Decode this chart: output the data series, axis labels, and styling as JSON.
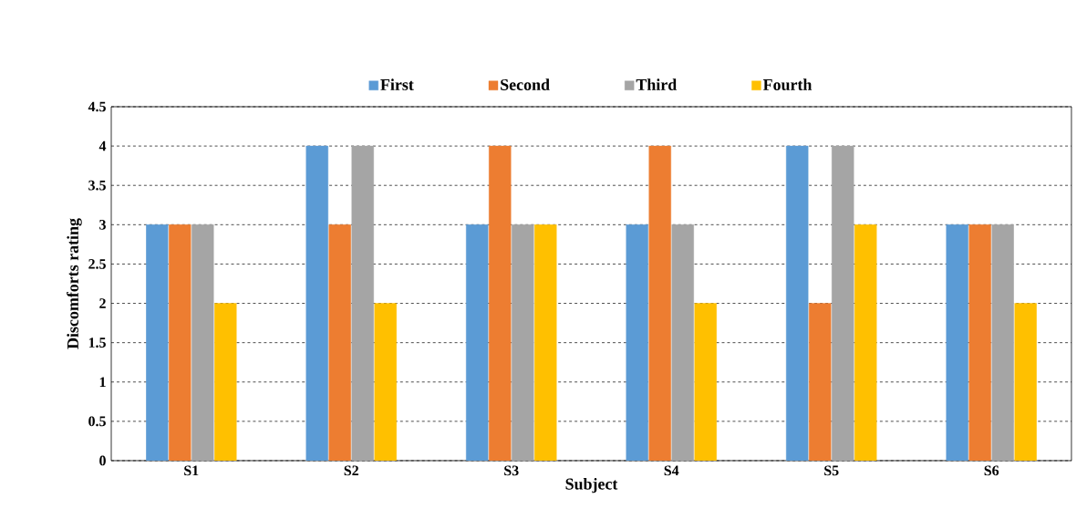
{
  "chart_data": {
    "type": "bar",
    "xlabel": "Subject",
    "ylabel": "Discomforts rating",
    "categories": [
      "S1",
      "S2",
      "S3",
      "S4",
      "S5",
      "S6"
    ],
    "series": [
      {
        "name": "First",
        "color": "#5b9bd5",
        "values": [
          3,
          4,
          3,
          3,
          4,
          3
        ]
      },
      {
        "name": "Second",
        "color": "#ed7d31",
        "values": [
          3,
          3,
          4,
          4,
          2,
          3
        ]
      },
      {
        "name": "Third",
        "color": "#a5a5a5",
        "values": [
          3,
          4,
          3,
          3,
          4,
          3
        ]
      },
      {
        "name": "Fourth",
        "color": "#ffc000",
        "values": [
          2,
          2,
          3,
          2,
          3,
          2
        ]
      }
    ],
    "ylim": [
      0,
      4.5
    ],
    "yticks": [
      0,
      0.5,
      1,
      1.5,
      2,
      2.5,
      3,
      3.5,
      4,
      4.5
    ],
    "grid": "y",
    "legend": "top"
  }
}
